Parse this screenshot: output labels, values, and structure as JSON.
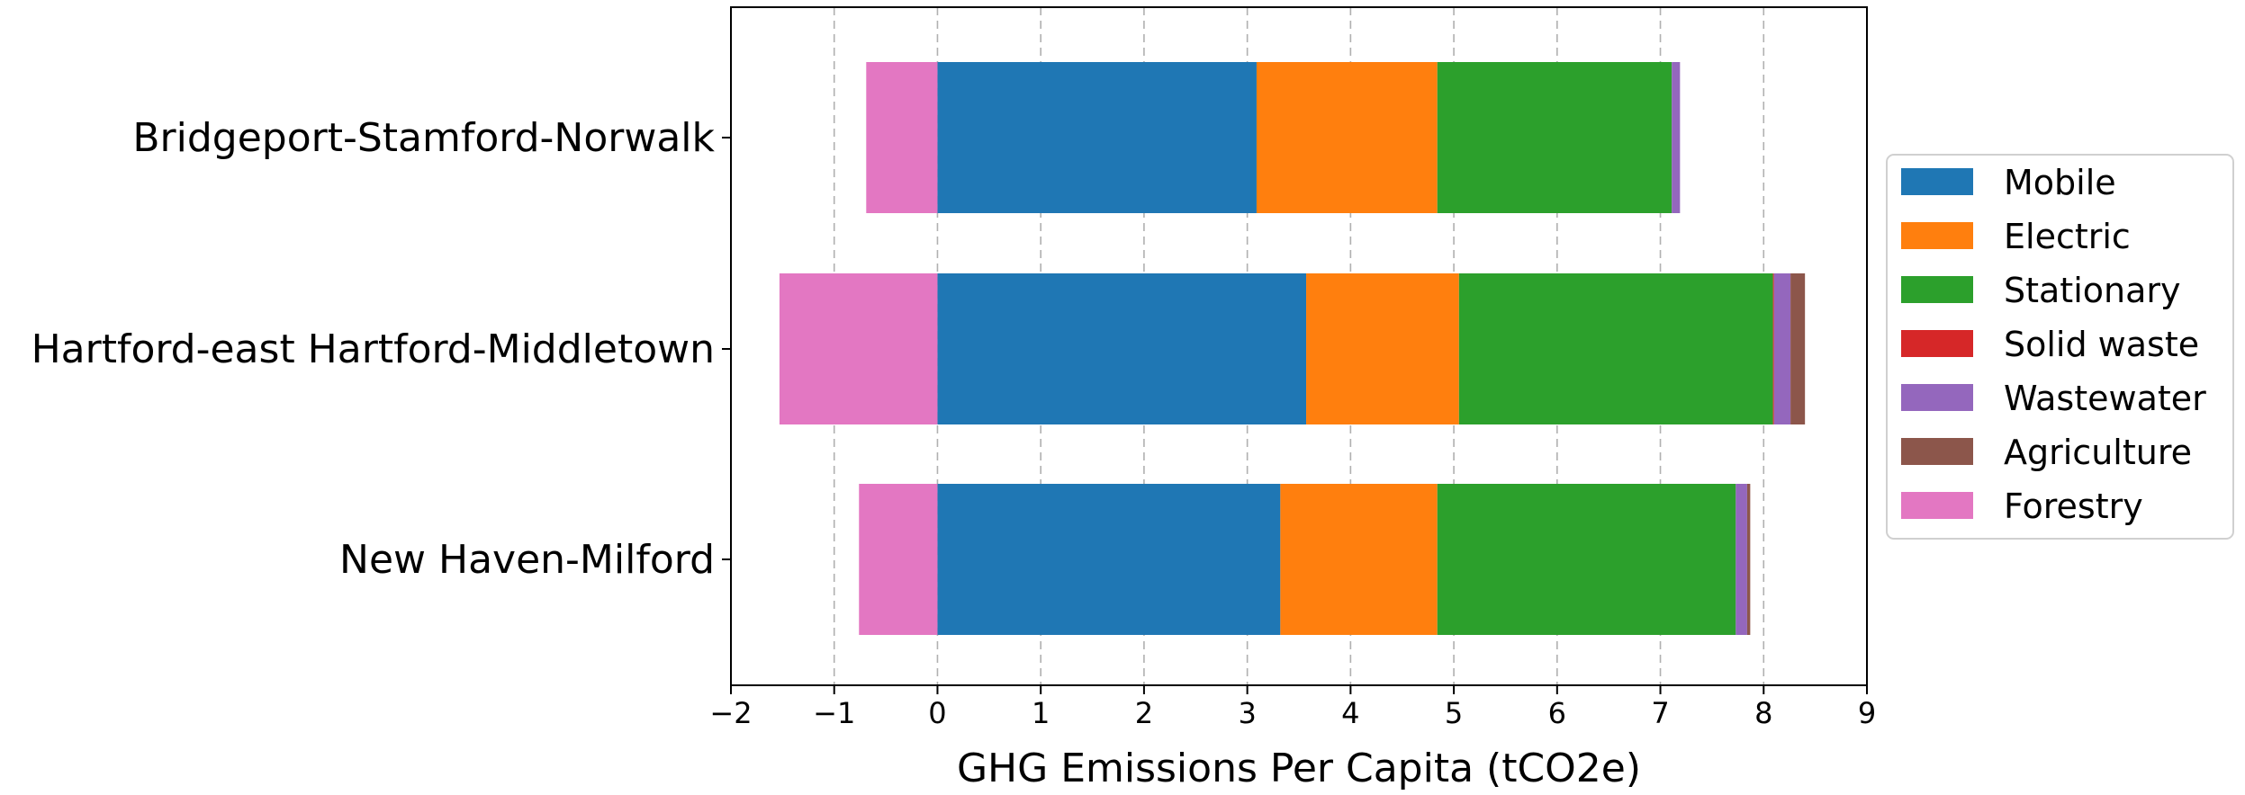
{
  "chart_data": {
    "type": "bar",
    "orientation": "horizontal",
    "stacked": true,
    "title": "",
    "xlabel": "GHG Emissions Per Capita (tCO2e)",
    "ylabel": "",
    "xlim": [
      -2,
      9
    ],
    "xticks": [
      -2,
      -1,
      0,
      1,
      2,
      3,
      4,
      5,
      6,
      7,
      8,
      9
    ],
    "xtick_labels": [
      "−2",
      "−1",
      "0",
      "1",
      "2",
      "3",
      "4",
      "5",
      "6",
      "7",
      "8",
      "9"
    ],
    "grid": "x, dashed",
    "legend_position": "right, outside",
    "categories": [
      "Bridgeport-Stamford-Norwalk",
      "Hartford-east Hartford-Middletown",
      "New Haven-Milford"
    ],
    "series": [
      {
        "name": "Mobile",
        "color": "#1f77b4",
        "values": [
          3.09,
          3.57,
          3.32
        ]
      },
      {
        "name": "Electric",
        "color": "#ff7f0e",
        "values": [
          1.75,
          1.48,
          1.52
        ]
      },
      {
        "name": "Stationary",
        "color": "#2ca02c",
        "values": [
          2.27,
          3.04,
          2.89
        ]
      },
      {
        "name": "Solid waste",
        "color": "#d62728",
        "values": [
          0.0,
          0.01,
          0.0
        ]
      },
      {
        "name": "Wastewater",
        "color": "#9467bd",
        "values": [
          0.08,
          0.16,
          0.11
        ]
      },
      {
        "name": "Agriculture",
        "color": "#8c564b",
        "values": [
          0.0,
          0.14,
          0.03
        ]
      },
      {
        "name": "Forestry",
        "color": "#e377c2",
        "values": [
          -0.69,
          -1.53,
          -0.76
        ]
      }
    ]
  }
}
